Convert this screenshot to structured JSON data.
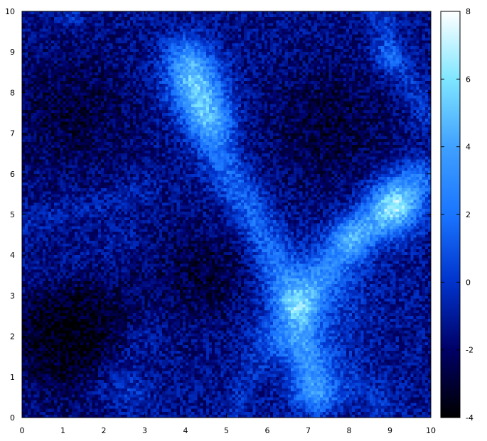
{
  "chart_data": {
    "type": "heatmap",
    "title": "",
    "xlabel": "",
    "ylabel": "",
    "xlim": [
      0,
      10
    ],
    "ylim": [
      0,
      10
    ],
    "x_ticks": [
      "0",
      "1",
      "2",
      "3",
      "4",
      "5",
      "6",
      "7",
      "8",
      "9",
      "10"
    ],
    "y_ticks": [
      "0",
      "1",
      "2",
      "3",
      "4",
      "5",
      "6",
      "7",
      "8",
      "9",
      "10"
    ],
    "colorbar": {
      "range": [
        -4,
        8
      ],
      "ticks": [
        "8",
        "6",
        "4",
        "2",
        "0",
        "-2",
        "-4"
      ],
      "colormap": [
        "#000000",
        "#000066",
        "#0033cc",
        "#1a75ff",
        "#40a0ff",
        "#7fe6ff",
        "#ffffff"
      ]
    },
    "grid": false,
    "field_features": [
      {
        "kind": "filament",
        "points": [
          [
            4.0,
            8.9
          ],
          [
            4.4,
            7.6
          ],
          [
            5.0,
            6.1
          ],
          [
            5.7,
            4.9
          ],
          [
            6.2,
            3.8
          ],
          [
            6.7,
            2.6
          ],
          [
            7.1,
            0.6
          ]
        ],
        "peak": 3.0,
        "width": 0.35
      },
      {
        "kind": "filament",
        "points": [
          [
            9.7,
            5.9
          ],
          [
            9.0,
            5.1
          ],
          [
            8.2,
            4.4
          ],
          [
            7.4,
            3.6
          ],
          [
            6.8,
            2.8
          ]
        ],
        "peak": 3.0,
        "width": 0.35
      },
      {
        "kind": "filament",
        "points": [
          [
            8.8,
            9.9
          ],
          [
            9.0,
            8.8
          ],
          [
            9.5,
            8.2
          ],
          [
            9.9,
            7.4
          ]
        ],
        "peak": 1.5,
        "width": 0.25
      },
      {
        "kind": "filament",
        "points": [
          [
            0.0,
            4.8
          ],
          [
            1.0,
            5.0
          ],
          [
            2.0,
            5.3
          ],
          [
            3.0,
            5.6
          ]
        ],
        "peak": 0.8,
        "width": 0.25
      },
      {
        "kind": "filament",
        "points": [
          [
            0.0,
            3.4
          ],
          [
            1.5,
            3.9
          ],
          [
            2.5,
            4.3
          ]
        ],
        "peak": 0.5,
        "width": 0.3
      },
      {
        "kind": "filament",
        "points": [
          [
            6.2,
            1.9
          ],
          [
            5.5,
            1.0
          ],
          [
            5.2,
            0.0
          ]
        ],
        "peak": 1.0,
        "width": 0.25
      },
      {
        "kind": "filament",
        "points": [
          [
            2.0,
            0.8
          ],
          [
            2.6,
            1.5
          ],
          [
            3.0,
            2.0
          ]
        ],
        "peak": 1.0,
        "width": 0.35
      },
      {
        "kind": "filament",
        "points": [
          [
            6.0,
            2.0
          ],
          [
            7.4,
            1.4
          ],
          [
            8.8,
            0.3
          ]
        ],
        "peak": 1.0,
        "width": 0.35
      },
      {
        "kind": "blob",
        "center": [
          4.2,
          8.3
        ],
        "peak": 3.5,
        "width": 0.55
      },
      {
        "kind": "blob",
        "center": [
          4.6,
          7.4
        ],
        "peak": 3.0,
        "width": 0.45
      },
      {
        "kind": "blob",
        "center": [
          9.1,
          5.2
        ],
        "peak": 5.0,
        "width": 0.5
      },
      {
        "kind": "blob",
        "center": [
          8.0,
          4.5
        ],
        "peak": 3.0,
        "width": 0.35
      },
      {
        "kind": "blob",
        "center": [
          7.1,
          2.8
        ],
        "peak": 2.0,
        "width": 0.9
      },
      {
        "kind": "blob",
        "center": [
          7.3,
          0.6
        ],
        "peak": 2.0,
        "width": 0.4
      },
      {
        "kind": "blob",
        "center": [
          9.0,
          8.9
        ],
        "peak": 2.0,
        "width": 0.25
      },
      {
        "kind": "blob",
        "center": [
          1.2,
          9.9
        ],
        "peak": 1.5,
        "width": 0.2
      },
      {
        "kind": "blob",
        "center": [
          2.7,
          0.6
        ],
        "peak": 1.5,
        "width": 0.35
      }
    ],
    "voids": [
      {
        "center": [
          1.2,
          2.0
        ],
        "depth": 2.5,
        "width": 1.1
      },
      {
        "center": [
          1.2,
          7.5
        ],
        "depth": 1.5,
        "width": 1.2
      },
      {
        "center": [
          7.5,
          7.2
        ],
        "depth": 1.5,
        "width": 1.2
      },
      {
        "center": [
          4.5,
          3.5
        ],
        "depth": 1.5,
        "width": 0.9
      }
    ]
  }
}
